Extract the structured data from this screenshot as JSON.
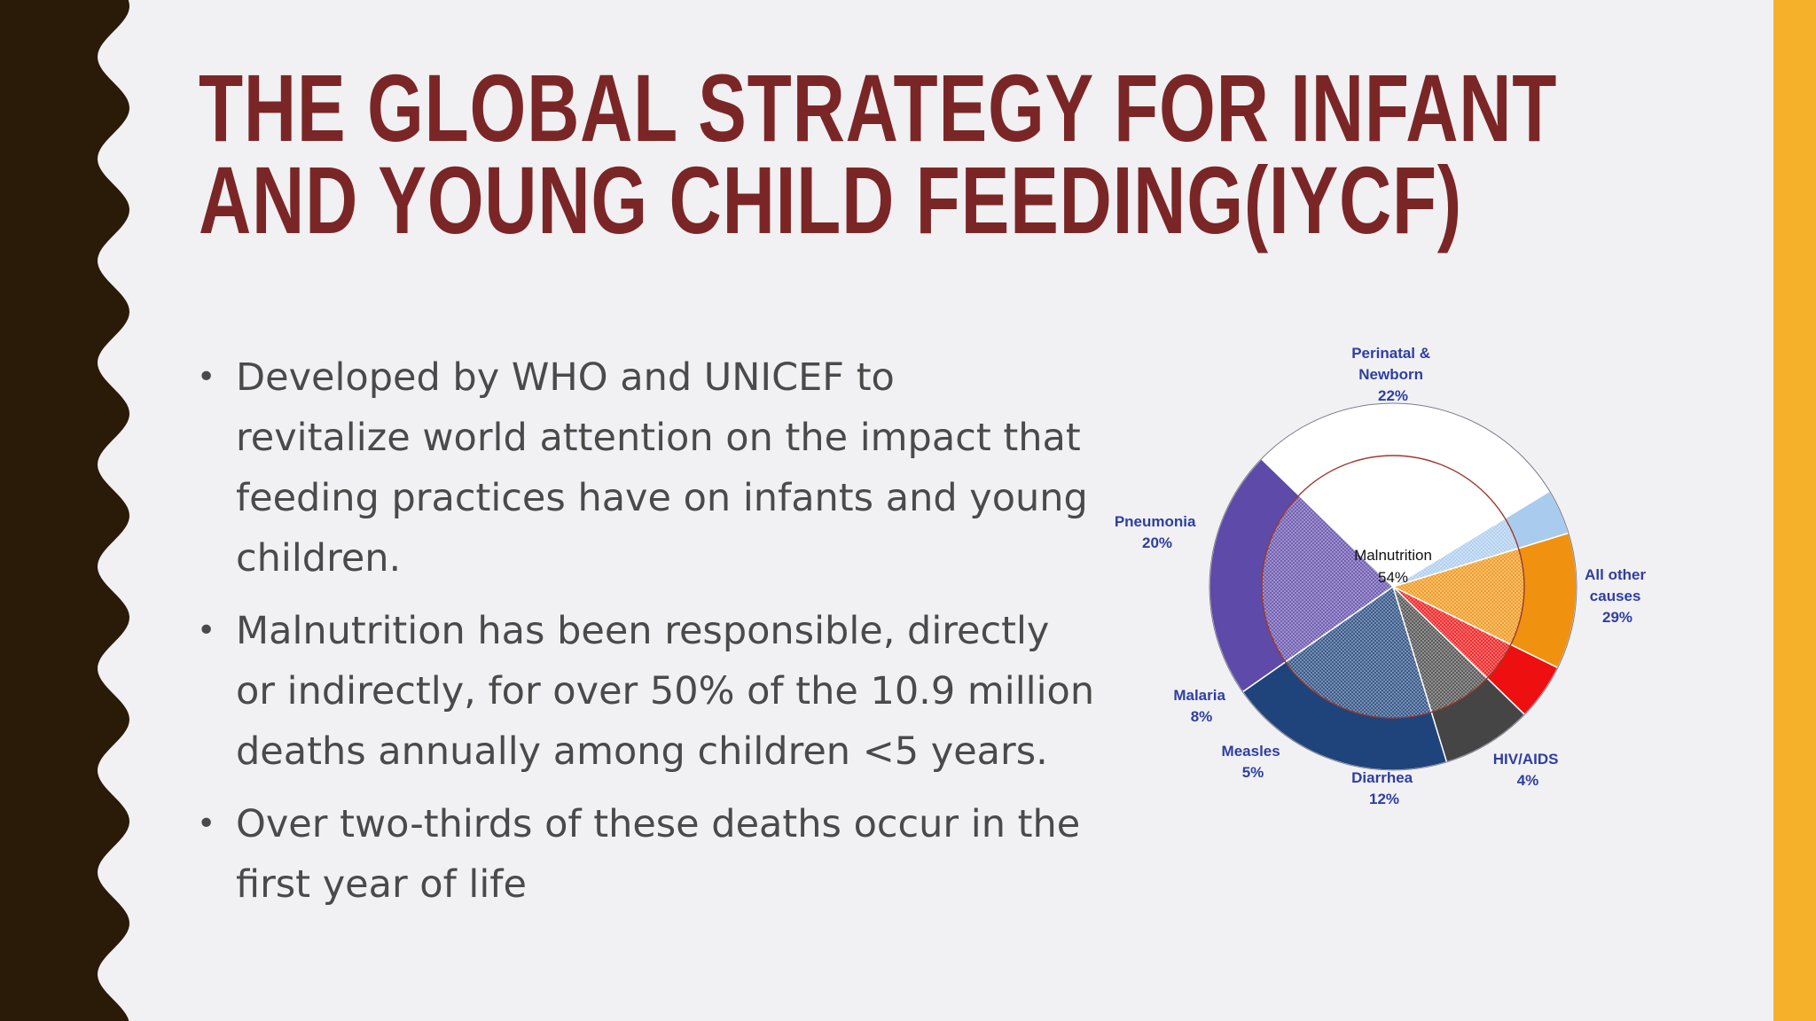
{
  "title": {
    "line1": "THE GLOBAL STRATEGY FOR INFANT",
    "line2": "AND YOUNG CHILD FEEDING(IYCF)"
  },
  "bullets": [
    {
      "lines": [
        "Developed by WHO and UNICEF to",
        "revitalize world attention on the impact that",
        "feeding practices have on infants and young",
        "children."
      ]
    },
    {
      "lines": [
        "Malnutrition has been responsible, directly",
        "or indirectly, for over 50% of the 10.9 million",
        "deaths annually among children <5 years."
      ]
    },
    {
      "lines": [
        "Over two-thirds of these deaths occur in the",
        "first year of life"
      ]
    }
  ],
  "colors": {
    "title": "#7b2626",
    "text": "#4a4a4a",
    "left_band": "#2a1a08",
    "right_stripe": "#f6b12a",
    "background": "#f1f0f3",
    "chart_label": "#2e3fa0"
  },
  "chart_data": {
    "type": "pie",
    "title": "",
    "slices": [
      {
        "label": "Perinatal & Newborn",
        "value": 22,
        "text": "22%",
        "color": "#5e4aa9"
      },
      {
        "label": "All other causes",
        "value": 29,
        "text": "29%",
        "color": "#ffffff"
      },
      {
        "label": "HIV/AIDS",
        "value": 4,
        "text": "4%",
        "color": "#a9cbee"
      },
      {
        "label": "Diarrhea",
        "value": 12,
        "text": "12%",
        "color": "#f0920f"
      },
      {
        "label": "Measles",
        "value": 5,
        "text": "5%",
        "color": "#ee0f10"
      },
      {
        "label": "Malaria",
        "value": 8,
        "text": "8%",
        "color": "#454545"
      },
      {
        "label": "Pneumonia",
        "value": 20,
        "text": "20%",
        "color": "#1f447c"
      }
    ],
    "overlay": {
      "label": "Malnutrition",
      "value": 54,
      "text": "54%"
    },
    "label_lines": [
      [
        "Perinatal &",
        "Newborn",
        "22%"
      ],
      [
        "All other",
        "causes",
        "29%"
      ],
      [
        "HIV/AIDS",
        "4%"
      ],
      [
        "Diarrhea",
        "12%"
      ],
      [
        "Measles",
        "5%"
      ],
      [
        "Malaria",
        "8%"
      ],
      [
        "Pneumonia",
        "20%"
      ]
    ]
  }
}
